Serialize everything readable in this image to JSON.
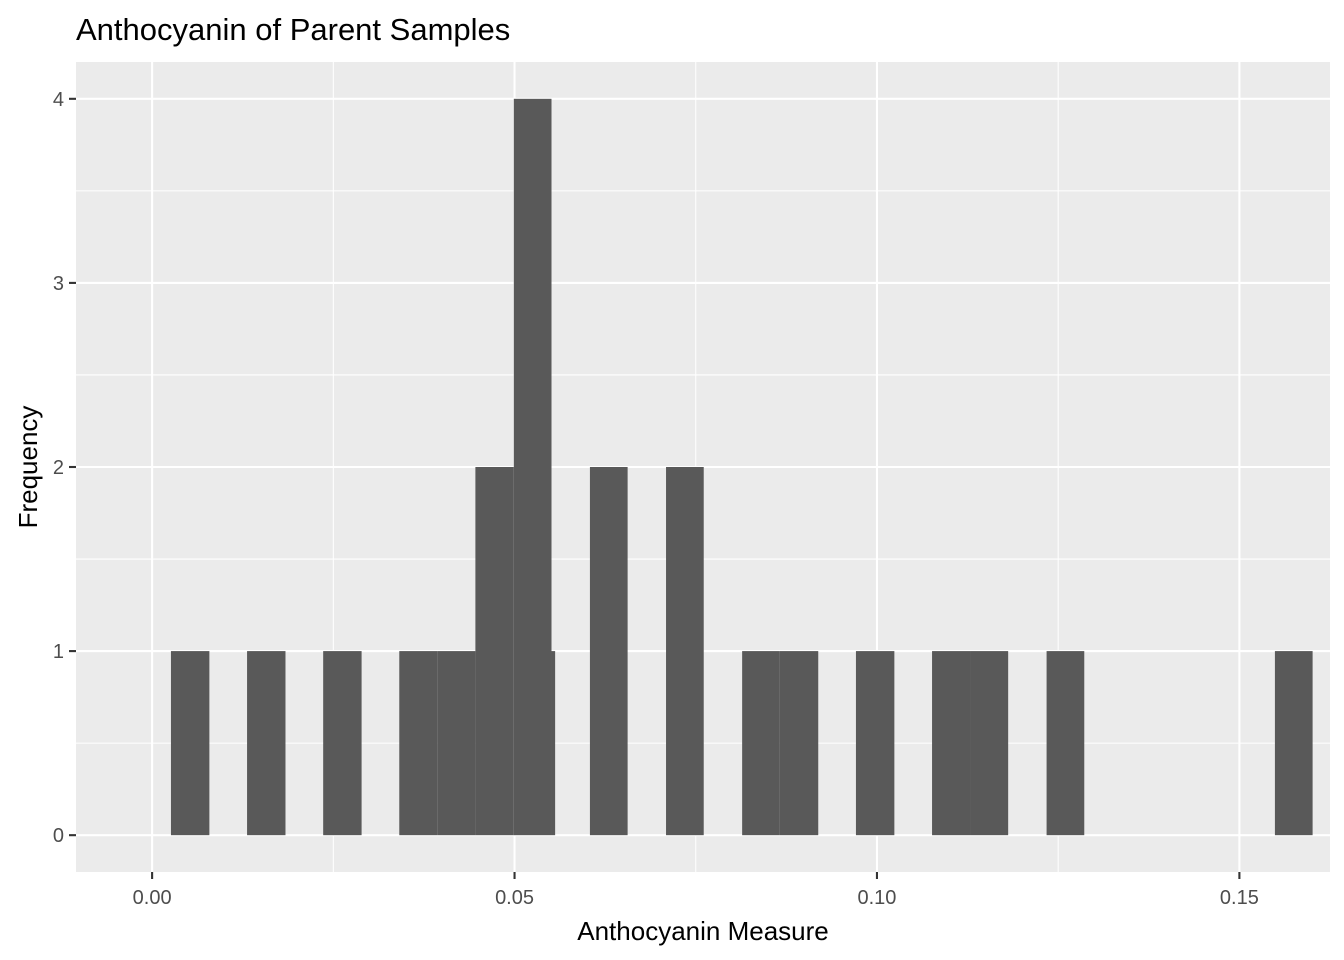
{
  "chart_data": {
    "type": "bar",
    "title": "Anthocyanin of Parent Samples",
    "xlabel": "Anthocyanin Measure",
    "ylabel": "Frequency",
    "xlim": [
      -0.0105,
      0.1625
    ],
    "ylim": [
      -0.2,
      4.2
    ],
    "x_ticks": [
      0.0,
      0.05,
      0.1,
      0.15
    ],
    "x_tick_labels": [
      "0.00",
      "0.05",
      "0.10",
      "0.15"
    ],
    "y_ticks": [
      0,
      1,
      2,
      3,
      4
    ],
    "y_tick_labels": [
      "0",
      "1",
      "2",
      "3",
      "4"
    ],
    "grid": true,
    "panel_background": "#ebebeb",
    "bar_color": "#595959",
    "bins": [
      {
        "x0": 0.0026,
        "x1": 0.0079,
        "count": 1
      },
      {
        "x0": 0.0131,
        "x1": 0.0184,
        "count": 1
      },
      {
        "x0": 0.0236,
        "x1": 0.0289,
        "count": 1
      },
      {
        "x0": 0.0341,
        "x1": 0.0394,
        "count": 1
      },
      {
        "x0": 0.0394,
        "x1": 0.0446,
        "count": 1
      },
      {
        "x0": 0.0446,
        "x1": 0.0499,
        "count": 2
      },
      {
        "x0": 0.0499,
        "x1": 0.0551,
        "count": 4
      },
      {
        "x0": 0.0551,
        "x1": 0.0556,
        "count": 1
      },
      {
        "x0": 0.0604,
        "x1": 0.0656,
        "count": 2
      },
      {
        "x0": 0.0709,
        "x1": 0.0761,
        "count": 2
      },
      {
        "x0": 0.0814,
        "x1": 0.0866,
        "count": 1
      },
      {
        "x0": 0.0866,
        "x1": 0.0919,
        "count": 1
      },
      {
        "x0": 0.0971,
        "x1": 0.1024,
        "count": 1
      },
      {
        "x0": 0.1076,
        "x1": 0.1129,
        "count": 1
      },
      {
        "x0": 0.1129,
        "x1": 0.1181,
        "count": 1
      },
      {
        "x0": 0.1234,
        "x1": 0.1286,
        "count": 1
      },
      {
        "x0": 0.1549,
        "x1": 0.1601,
        "count": 1
      }
    ]
  }
}
